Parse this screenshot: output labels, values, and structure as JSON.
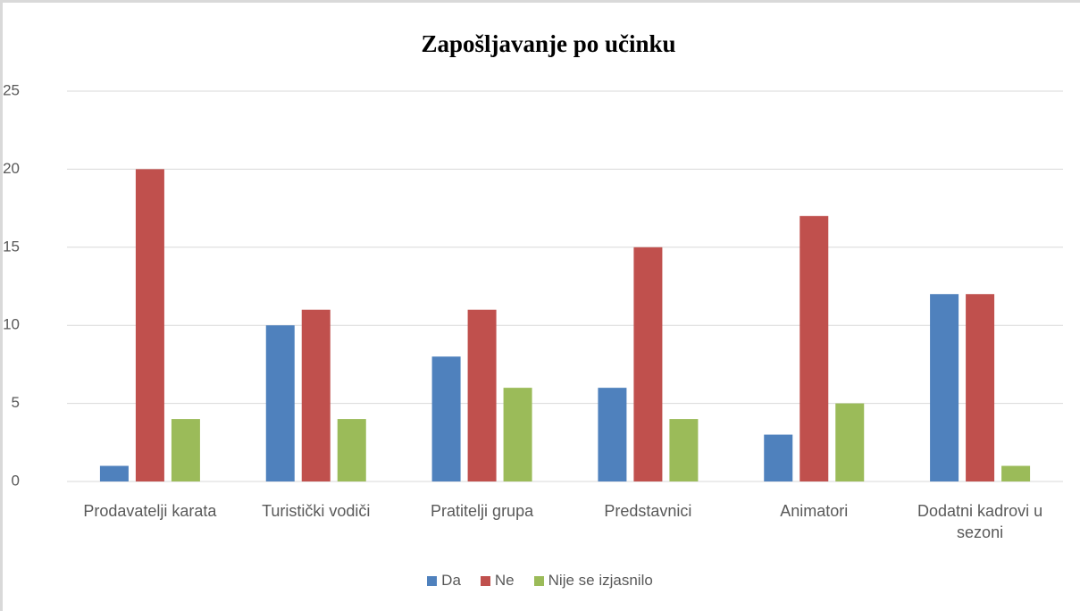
{
  "chart_data": {
    "type": "bar",
    "title": "Zapošljavanje po učinku",
    "categories": [
      "Prodavatelji karata",
      "Turistički vodiči",
      "Pratitelji grupa",
      "Predstavnici",
      "Animatori",
      "Dodatni kadrovi u sezoni"
    ],
    "series": [
      {
        "name": "Da",
        "color": "#4f81bd",
        "values": [
          1,
          10,
          8,
          6,
          3,
          12
        ]
      },
      {
        "name": "Ne",
        "color": "#c0504d",
        "values": [
          20,
          11,
          11,
          15,
          17,
          12
        ]
      },
      {
        "name": "Nije se izjasnilo",
        "color": "#9bbb59",
        "values": [
          4,
          4,
          6,
          4,
          5,
          1
        ]
      }
    ],
    "ylim": [
      0,
      25
    ],
    "yticks": [
      0,
      5,
      10,
      15,
      20,
      25
    ],
    "grid": true,
    "legend": "bottom"
  }
}
